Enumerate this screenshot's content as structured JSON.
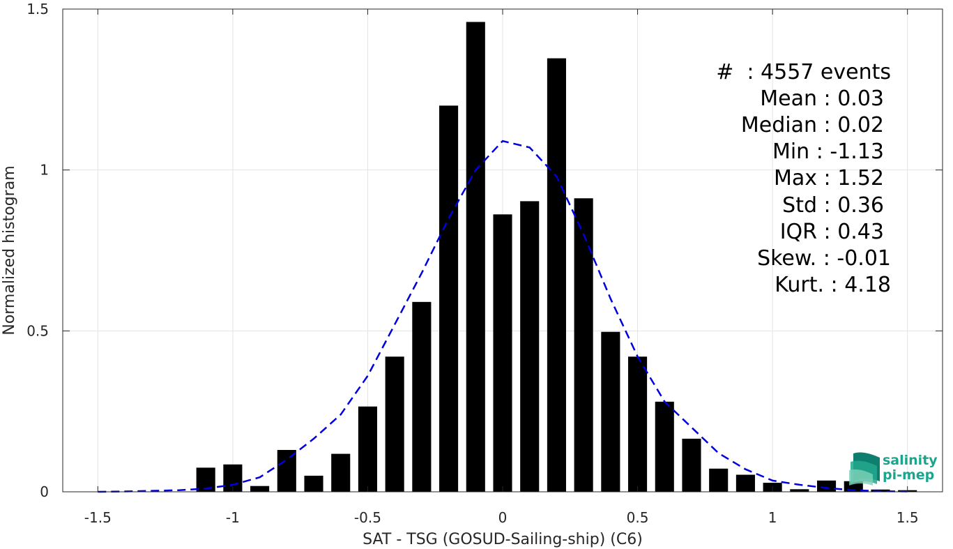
{
  "chart_data": {
    "type": "bar",
    "title": "",
    "xlabel": "SAT - TSG (GOSUD-Sailing-ship) (C6)",
    "ylabel": "Normalized histogram",
    "xlim": [
      -1.63,
      1.63
    ],
    "ylim": [
      0,
      1.5
    ],
    "grid": true,
    "xticks": [
      -1.5,
      -1,
      -0.5,
      0,
      0.5,
      1,
      1.5
    ],
    "xtick_labels": [
      "-1.5",
      "-1",
      "-0.5",
      "0",
      "0.5",
      "1",
      "1.5"
    ],
    "yticks": [
      0,
      0.5,
      1,
      1.5
    ],
    "ytick_labels": [
      "0",
      "0.5",
      "1",
      "1.5"
    ],
    "bar_width": 0.07,
    "bars": {
      "color": "#000000",
      "x": [
        -1.1,
        -1.0,
        -0.9,
        -0.8,
        -0.7,
        -0.6,
        -0.5,
        -0.4,
        -0.3,
        -0.2,
        -0.1,
        0.0,
        0.1,
        0.2,
        0.3,
        0.4,
        0.5,
        0.6,
        0.7,
        0.8,
        0.9,
        1.0,
        1.1,
        1.2,
        1.3,
        1.4,
        1.5
      ],
      "values": [
        0.075,
        0.085,
        0.018,
        0.13,
        0.05,
        0.118,
        0.265,
        0.42,
        0.59,
        1.2,
        1.46,
        0.862,
        0.903,
        1.347,
        0.912,
        0.497,
        0.42,
        0.28,
        0.165,
        0.072,
        0.053,
        0.028,
        0.008,
        0.035,
        0.033,
        0.007,
        0.005
      ]
    },
    "fit_curve": {
      "color": "#0000dd",
      "style": "dashed",
      "x": [
        -1.5,
        -1.4,
        -1.3,
        -1.2,
        -1.1,
        -1.0,
        -0.9,
        -0.8,
        -0.7,
        -0.6,
        -0.5,
        -0.4,
        -0.3,
        -0.2,
        -0.1,
        0.0,
        0.1,
        0.2,
        0.3,
        0.4,
        0.5,
        0.6,
        0.7,
        0.8,
        0.9,
        1.0,
        1.1,
        1.2,
        1.3,
        1.4,
        1.5
      ],
      "y": [
        0.0,
        0.001,
        0.003,
        0.005,
        0.01,
        0.022,
        0.045,
        0.1,
        0.165,
        0.24,
        0.36,
        0.52,
        0.68,
        0.85,
        1.0,
        1.09,
        1.07,
        0.98,
        0.8,
        0.6,
        0.42,
        0.28,
        0.2,
        0.12,
        0.07,
        0.035,
        0.022,
        0.012,
        0.005,
        0.002,
        0.001
      ]
    }
  },
  "stats": {
    "lines": [
      "#  : 4557 events",
      "Mean : 0.03",
      "Median : 0.02",
      "Min : -1.13",
      "Max : 1.52",
      "Std : 0.36",
      "IQR : 0.43",
      "Skew. : -0.01",
      "Kurt. : 4.18"
    ]
  },
  "logo": {
    "line1": "salinity",
    "line2": "pi-mep",
    "accent": "#1aa58c"
  }
}
